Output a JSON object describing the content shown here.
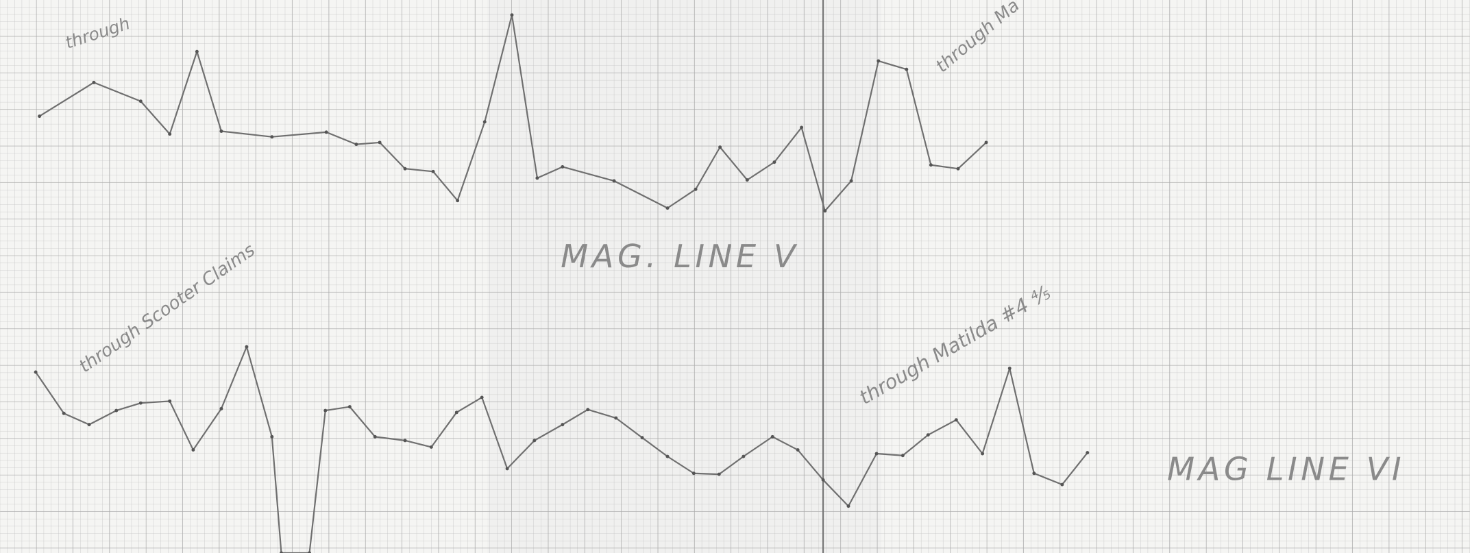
{
  "upper_profile": {
    "label": "MAG. LINE V",
    "notes": [
      "through",
      "through Ma"
    ]
  },
  "lower_profile": {
    "label": "MAG LINE VI",
    "notes": [
      "through Scooter Claims",
      "through Matilda #4 ⅘"
    ]
  }
}
